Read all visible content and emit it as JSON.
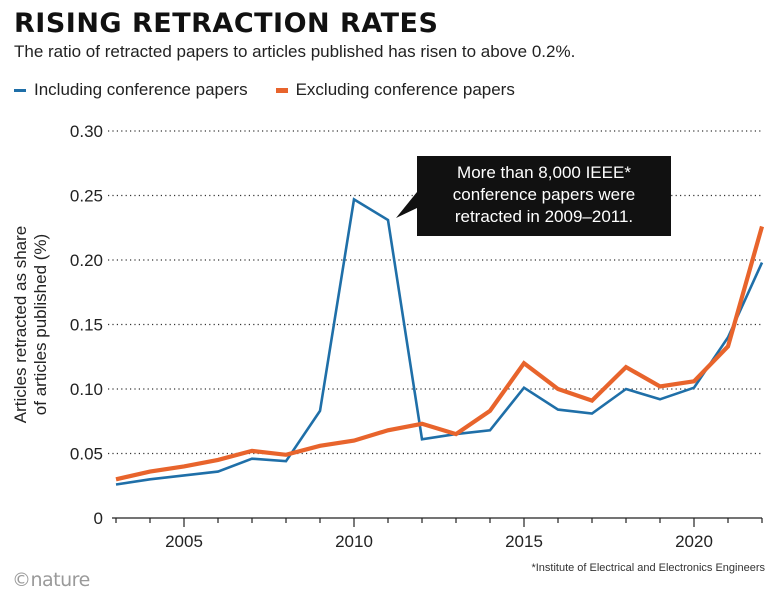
{
  "header": {
    "title": "RISING RETRACTION RATES",
    "subtitle": "The ratio of retracted papers to articles published has risen to above 0.2%."
  },
  "legend": {
    "items": [
      {
        "label": "Including conference papers",
        "color": "#1f6fa8"
      },
      {
        "label": "Excluding conference papers",
        "color": "#e8642c"
      }
    ]
  },
  "footer": {
    "logo": "©nature",
    "footnote": "*Institute of Electrical and Electronics Engineers"
  },
  "chart_data": {
    "type": "line",
    "title": "RISING RETRACTION RATES",
    "ylabel_line1": "Articles retracted as share",
    "ylabel_line2": "of articles published (%)",
    "xlabel": "",
    "xlim": [
      2003,
      2022
    ],
    "ylim": [
      0,
      0.3
    ],
    "yticks": [
      0,
      0.05,
      0.1,
      0.15,
      0.2,
      0.25,
      0.3
    ],
    "ytick_labels": [
      "0",
      "0.05",
      "0.10",
      "0.15",
      "0.20",
      "0.25",
      "0.30"
    ],
    "xticks": [
      2005,
      2010,
      2015,
      2020
    ],
    "xtick_labels": [
      "2005",
      "2010",
      "2015",
      "2020"
    ],
    "grid": "horizontal-dotted",
    "x": [
      2003,
      2004,
      2005,
      2006,
      2007,
      2008,
      2009,
      2010,
      2011,
      2012,
      2013,
      2014,
      2015,
      2016,
      2017,
      2018,
      2019,
      2020,
      2021,
      2022
    ],
    "series": [
      {
        "name": "Including conference papers",
        "color": "#1f6fa8",
        "values": [
          0.026,
          0.03,
          0.033,
          0.036,
          0.046,
          0.044,
          0.083,
          0.247,
          0.231,
          0.061,
          0.065,
          0.068,
          0.101,
          0.084,
          0.081,
          0.1,
          0.092,
          0.101,
          0.14,
          0.198
        ]
      },
      {
        "name": "Excluding conference papers",
        "color": "#e8642c",
        "values": [
          0.03,
          0.036,
          0.04,
          0.045,
          0.052,
          0.049,
          0.056,
          0.06,
          0.068,
          0.073,
          0.065,
          0.083,
          0.12,
          0.1,
          0.091,
          0.117,
          0.102,
          0.106,
          0.133,
          0.226
        ]
      }
    ],
    "annotation": {
      "lines": [
        "More than 8,000 IEEE*",
        "conference papers were",
        "retracted in 2009–2011."
      ],
      "x": 2011,
      "y": 0.231
    }
  }
}
